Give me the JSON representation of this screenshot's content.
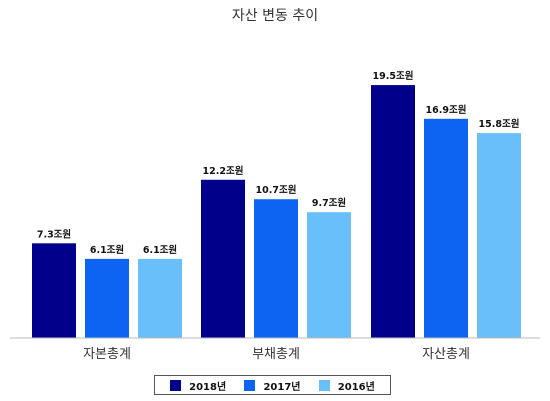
{
  "chart_data": {
    "type": "bar",
    "title": "자산 변동 추이",
    "categories": [
      "자본총계",
      "부채총계",
      "자산총계"
    ],
    "series": [
      {
        "name": "2018년",
        "color": "#00008b",
        "values": [
          7.3,
          12.2,
          19.5
        ],
        "labels": [
          "7.3조원",
          "12.2조원",
          "19.5조원"
        ]
      },
      {
        "name": "2017년",
        "color": "#0d64f2",
        "values": [
          6.1,
          10.7,
          16.9
        ],
        "labels": [
          "6.1조원",
          "10.7조원",
          "16.9조원"
        ]
      },
      {
        "name": "2016년",
        "color": "#68bff9",
        "values": [
          6.1,
          9.7,
          15.8
        ],
        "labels": [
          "6.1조원",
          "9.7조원",
          "15.8조원"
        ]
      }
    ],
    "ylim": [
      0,
      22
    ],
    "grid": false,
    "legend": "bottom",
    "value_unit": "조원"
  }
}
